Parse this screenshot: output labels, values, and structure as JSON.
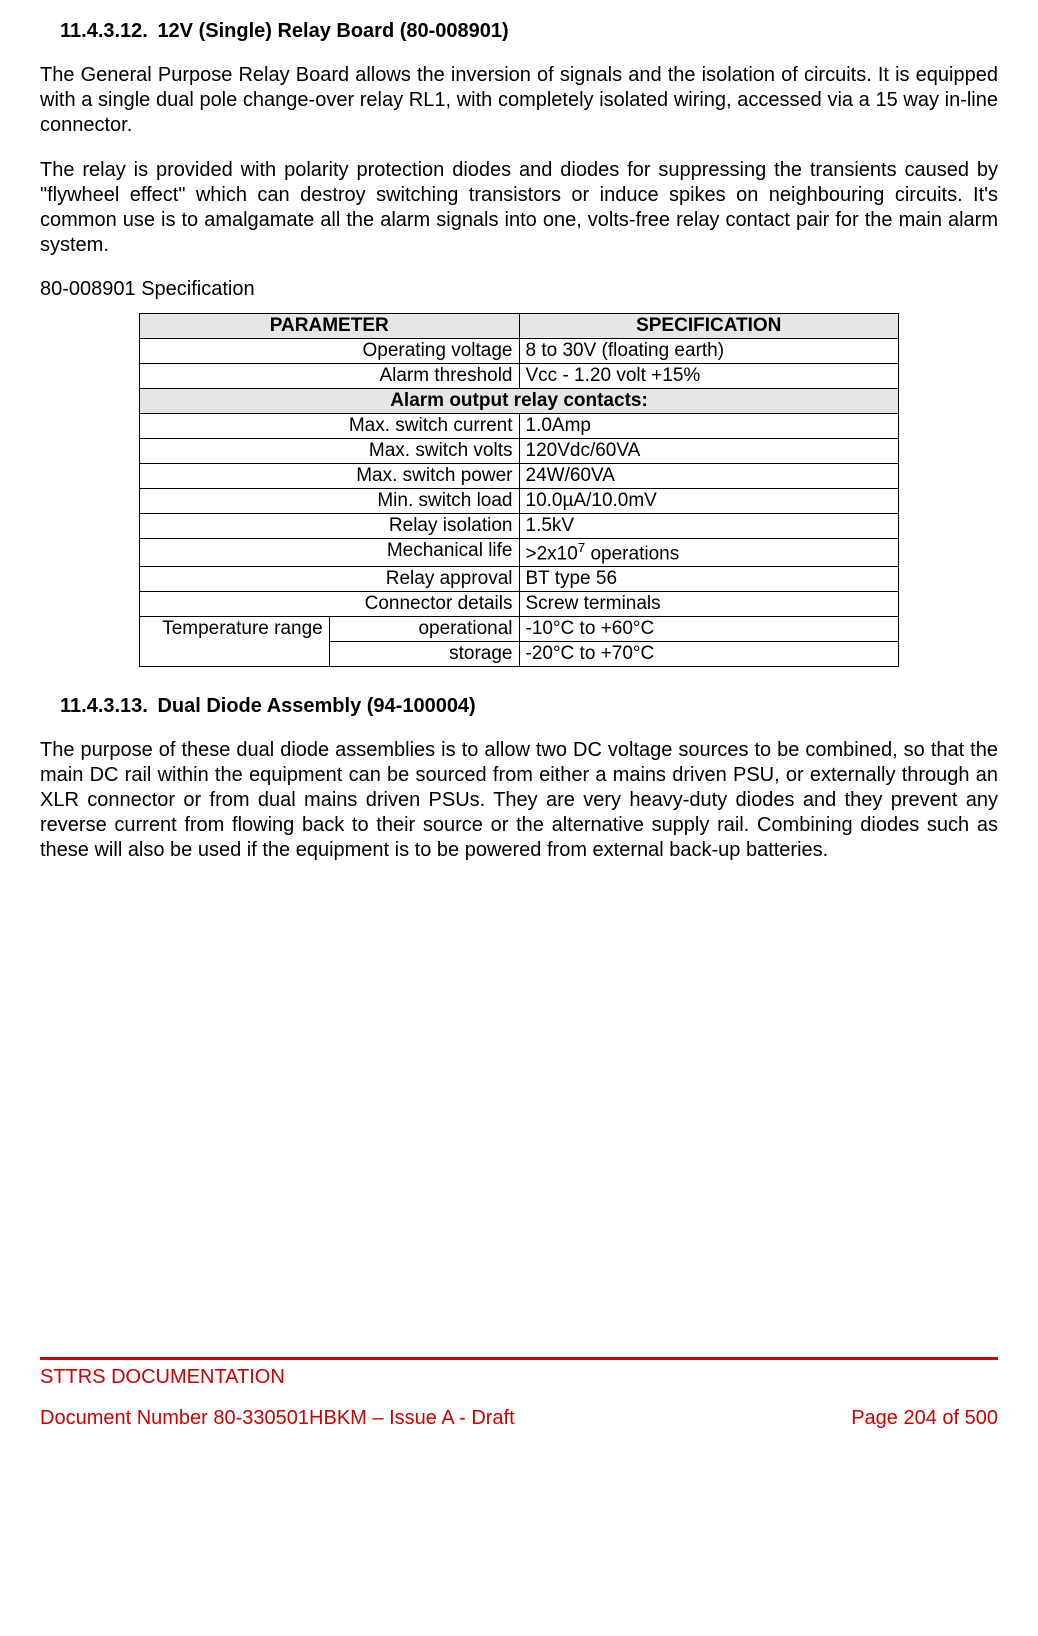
{
  "section1": {
    "number": "11.4.3.12.",
    "title": "12V (Single) Relay Board (80-008901)",
    "para1": "The General Purpose Relay Board allows the inversion of signals and the isolation of circuits. It is equipped with a single dual pole change-over relay RL1, with completely isolated wiring, accessed via a 15 way in-line connector.",
    "para2": "The relay is provided with polarity protection diodes and diodes for suppressing the transients caused by \"flywheel effect\" which can destroy switching transistors or induce spikes on neighbouring circuits. It's common use is to amalgamate all the alarm signals into one, volts-free relay contact pair for the main alarm system.",
    "spec_label": "80-008901 Specification"
  },
  "table_headers": {
    "parameter": "PARAMETER",
    "specification": "SPECIFICATION"
  },
  "table_colors": {
    "header_bg": "#e6e6e6",
    "border": "#000000"
  },
  "rows": {
    "r1_param": "Operating voltage",
    "r1_val": "8 to 30V (floating earth)",
    "r2_param": "Alarm threshold",
    "r2_val": "Vcc - 1.20 volt +15%",
    "section_row": "Alarm output relay contacts:",
    "r3_param": "Max. switch current",
    "r3_val": "1.0Amp",
    "r4_param": "Max. switch volts",
    "r4_val": "120Vdc/60VA",
    "r5_param": "Max. switch power",
    "r5_val": "24W/60VA",
    "r6_param": "Min. switch load",
    "r6_val": "10.0µA/10.0mV",
    "r7_param": "Relay isolation",
    "r7_val": "1.5kV",
    "r8_param": "Mechanical life",
    "r8_val_prefix": ">2x10",
    "r8_val_sup": "7",
    "r8_val_suffix": " operations",
    "r9_param": "Relay approval",
    "r9_val": "BT type 56",
    "r10_param": "Connector details",
    "r10_val": "Screw terminals",
    "temp_group": "Temperature range",
    "r11_param": "operational",
    "r11_val": "-10°C to +60°C",
    "r12_param": "storage",
    "r12_val": "-20°C to +70°C"
  },
  "section2": {
    "number": "11.4.3.13.",
    "title": "Dual Diode Assembly (94-100004)",
    "para1": "The purpose of these dual diode assemblies is to allow two DC voltage sources to be combined, so that the main DC rail within the equipment can be sourced from either a mains driven PSU, or externally through an XLR connector or from dual mains driven PSUs. They are very heavy-duty diodes and they prevent any reverse current from flowing back to their source or the alternative supply rail. Combining diodes such as these will also be used if the equipment is to be powered from external back-up batteries."
  },
  "footer": {
    "title": "STTRS DOCUMENTATION",
    "doc_number": "Document Number 80-330501HBKM – Issue A - Draft",
    "page": "Page 204 of 500",
    "line_color": "#cc0000",
    "text_color": "#cc0000"
  }
}
